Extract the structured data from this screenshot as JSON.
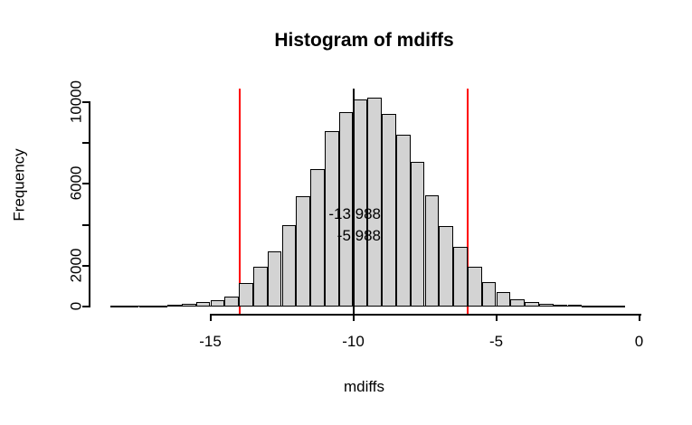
{
  "title": "Histogram of mdiffs",
  "axes": {
    "x": {
      "label": "mdiffs"
    },
    "y": {
      "label": "Frequency"
    }
  },
  "annotations": [
    {
      "text": "-13.988"
    },
    {
      "text": "-5.988"
    }
  ],
  "colors": {
    "bar_fill": "#d3d3d3",
    "bar_border": "#000000",
    "ci_line": "#ff0000",
    "mean_line": "#000000",
    "background": "#ffffff"
  },
  "chart_data": {
    "type": "bar",
    "subtype": "histogram",
    "title": "Histogram of mdiffs",
    "xlabel": "mdiffs",
    "ylabel": "Frequency",
    "xlim": [
      -18.5,
      0
    ],
    "ylim": [
      0,
      10000
    ],
    "grid": false,
    "x_ticks": [
      {
        "value": -15,
        "label": "-15"
      },
      {
        "value": -10,
        "label": "-10"
      },
      {
        "value": -5,
        "label": "-5"
      },
      {
        "value": 0,
        "label": "0"
      }
    ],
    "y_ticks": [
      {
        "value": 0,
        "label": "0"
      },
      {
        "value": 2000,
        "label": "2000"
      },
      {
        "value": 4000,
        "label": ""
      },
      {
        "value": 6000,
        "label": "6000"
      },
      {
        "value": 8000,
        "label": ""
      },
      {
        "value": 10000,
        "label": "10000"
      }
    ],
    "bins": {
      "start": -18.5,
      "width": 0.5,
      "counts": [
        1,
        3,
        8,
        20,
        45,
        90,
        175,
        265,
        440,
        1100,
        1900,
        2650,
        3930,
        5360,
        6680,
        8540,
        9470,
        10090,
        10180,
        9380,
        8360,
        7030,
        5400,
        3890,
        2870,
        1900,
        1150,
        660,
        310,
        180,
        90,
        50,
        25,
        10,
        4,
        2
      ]
    },
    "vlines": [
      {
        "x": -13.988,
        "color": "#ff0000",
        "name": "ci-lower-line"
      },
      {
        "x": -5.988,
        "color": "#ff0000",
        "name": "ci-upper-line"
      },
      {
        "x": -10,
        "color": "#000000",
        "name": "mean-line"
      }
    ],
    "annotation_labels": [
      "-13.988",
      "-5.988"
    ]
  }
}
